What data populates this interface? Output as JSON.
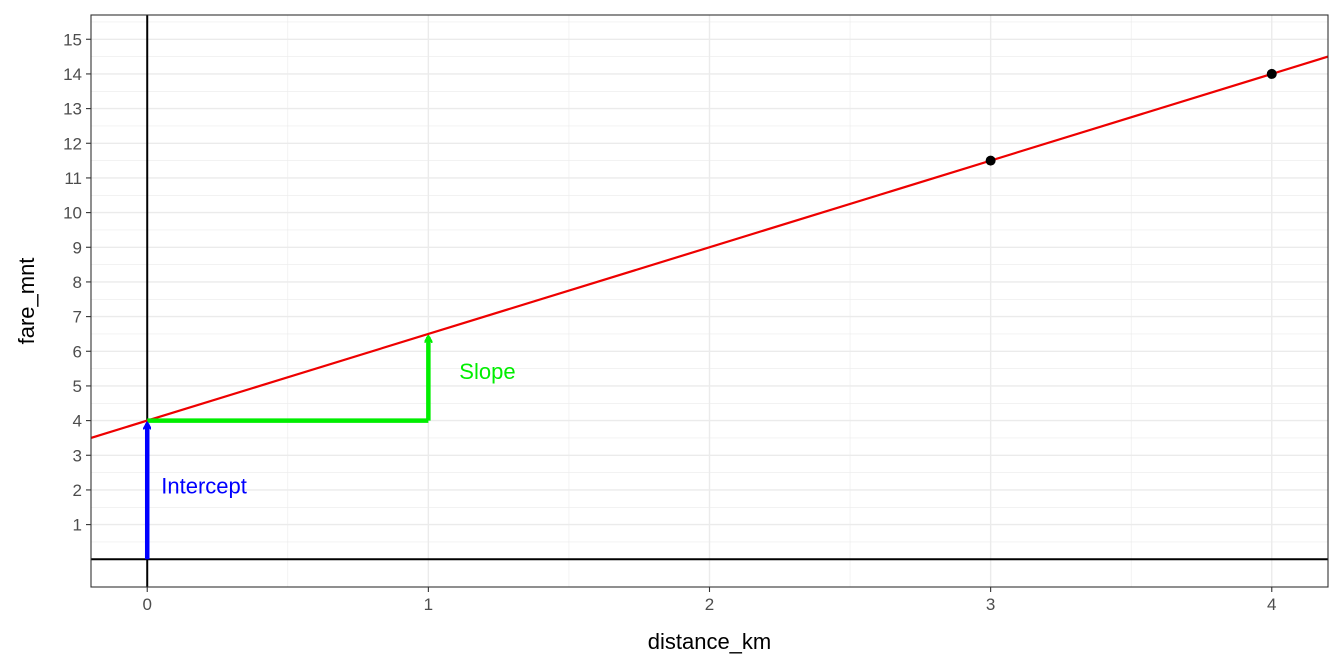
{
  "chart_data": {
    "type": "scatter",
    "xlabel": "distance_km",
    "ylabel": "fare_mnt",
    "xlim": [
      -0.2,
      4.2
    ],
    "ylim": [
      -0.8,
      15.7
    ],
    "x_ticks": [
      0,
      1,
      2,
      3,
      4
    ],
    "y_ticks": [
      1,
      2,
      3,
      4,
      5,
      6,
      7,
      8,
      9,
      10,
      11,
      12,
      13,
      14,
      15
    ],
    "grid": true,
    "points": [
      {
        "x": 3,
        "y": 11.5
      },
      {
        "x": 4,
        "y": 14
      }
    ],
    "regression_line": {
      "intercept": 4,
      "slope": 2.5,
      "color": "#ee0000"
    },
    "reference_lines": {
      "x": 0,
      "y": 0,
      "color": "#000000"
    },
    "intercept_arrow": {
      "x": 0,
      "y_from": 0,
      "y_to": 4,
      "color": "#0000ff"
    },
    "slope_arrow": {
      "x_from": 0,
      "x_to": 1,
      "y_from": 4,
      "y_to": 6.5,
      "color": "#00ee00"
    },
    "annotations": [
      {
        "text": "Intercept",
        "x": 0.05,
        "y": 1.9,
        "color": "#0000ff"
      },
      {
        "text": "Slope",
        "x": 1.11,
        "y": 5.2,
        "color": "#00ee00"
      }
    ]
  }
}
